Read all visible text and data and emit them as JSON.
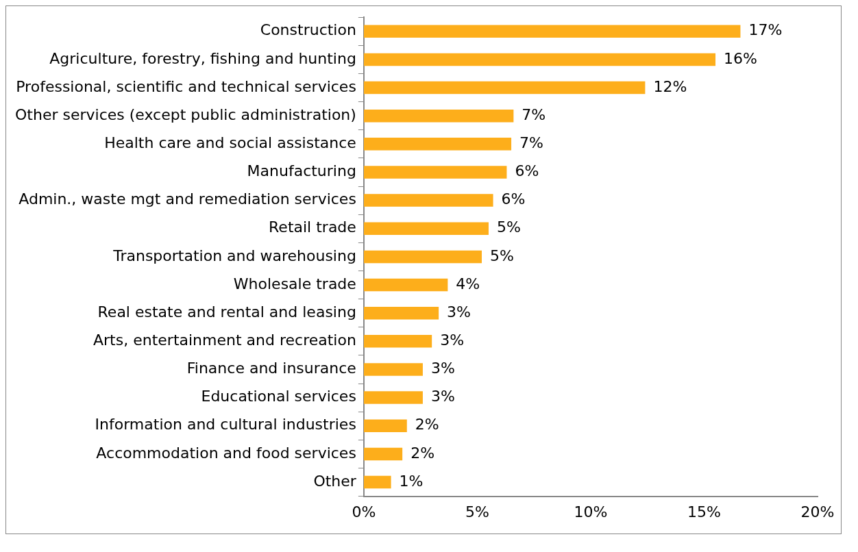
{
  "chart_data": {
    "type": "bar",
    "orientation": "horizontal",
    "categories": [
      "Construction",
      "Agriculture, forestry, fishing and hunting",
      "Professional, scientific and technical services",
      "Other services (except public administration)",
      "Health care and social assistance",
      "Manufacturing",
      "Admin., waste mgt and remediation services",
      "Retail trade",
      "Transportation and warehousing",
      "Wholesale trade",
      "Real estate and rental and leasing",
      "Arts, entertainment and recreation",
      "Finance and insurance",
      "Educational services",
      "Information and cultural industries",
      "Accommodation and food services",
      "Other"
    ],
    "values": [
      16.6,
      15.5,
      12.4,
      6.6,
      6.5,
      6.3,
      5.7,
      5.5,
      5.2,
      3.7,
      3.3,
      3.0,
      2.6,
      2.6,
      1.9,
      1.7,
      1.2
    ],
    "value_labels": [
      "17%",
      "16%",
      "12%",
      "7%",
      "7%",
      "6%",
      "6%",
      "5%",
      "5%",
      "4%",
      "3%",
      "3%",
      "3%",
      "3%",
      "2%",
      "2%",
      "1%"
    ],
    "color": "#fdae1b",
    "xlim": [
      0,
      20
    ],
    "xticks": [
      {
        "value": 0,
        "label": "0%"
      },
      {
        "value": 5,
        "label": "5%"
      },
      {
        "value": 10,
        "label": "10%"
      },
      {
        "value": 15,
        "label": "15%"
      },
      {
        "value": 20,
        "label": "20%"
      }
    ],
    "grid": false,
    "legend": false
  }
}
